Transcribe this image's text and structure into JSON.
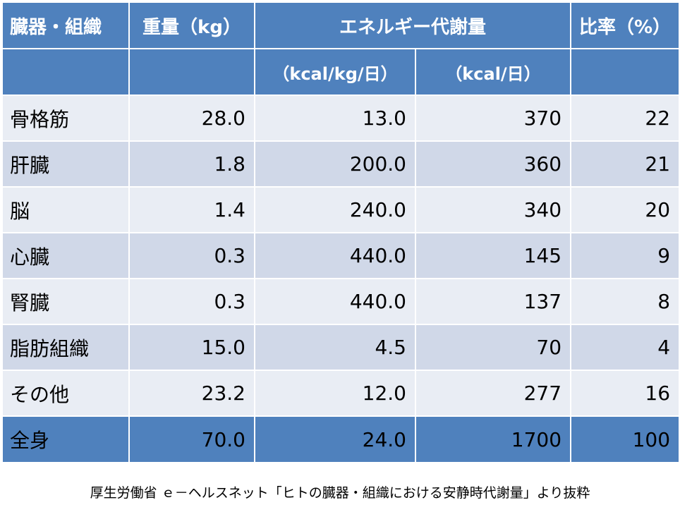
{
  "header": {
    "organ": "臓器・組織",
    "weight": "重量（kg）",
    "energy": "エネルギー代謝量",
    "ratio": "比率（%）",
    "unit_per_kg": "（kcal/kg/日）",
    "unit_per_day": "（kcal/日）"
  },
  "rows": [
    {
      "organ": "骨格筋",
      "weight": "28.0",
      "per_kg": "13.0",
      "per_day": "370",
      "ratio": "22"
    },
    {
      "organ": "肝臓",
      "weight": "1.8",
      "per_kg": "200.0",
      "per_day": "360",
      "ratio": "21"
    },
    {
      "organ": "脳",
      "weight": "1.4",
      "per_kg": "240.0",
      "per_day": "340",
      "ratio": "20"
    },
    {
      "organ": "心臓",
      "weight": "0.3",
      "per_kg": "440.0",
      "per_day": "145",
      "ratio": "9"
    },
    {
      "organ": "腎臓",
      "weight": "0.3",
      "per_kg": "440.0",
      "per_day": "137",
      "ratio": "8"
    },
    {
      "organ": "脂肪組織",
      "weight": "15.0",
      "per_kg": "4.5",
      "per_day": "70",
      "ratio": "4"
    },
    {
      "organ": "その他",
      "weight": "23.2",
      "per_kg": "12.0",
      "per_day": "277",
      "ratio": "16"
    }
  ],
  "total": {
    "organ": "全身",
    "weight": "70.0",
    "per_kg": "24.0",
    "per_day": "1700",
    "ratio": "100"
  },
  "caption": "厚生労働省 ｅ－ヘルスネット「ヒトの臓器・組織における安静時代謝量」より抜粋",
  "colors": {
    "header": "#4f81bd",
    "row_light": "#e9edf4",
    "row_dark": "#d0d8e8"
  }
}
